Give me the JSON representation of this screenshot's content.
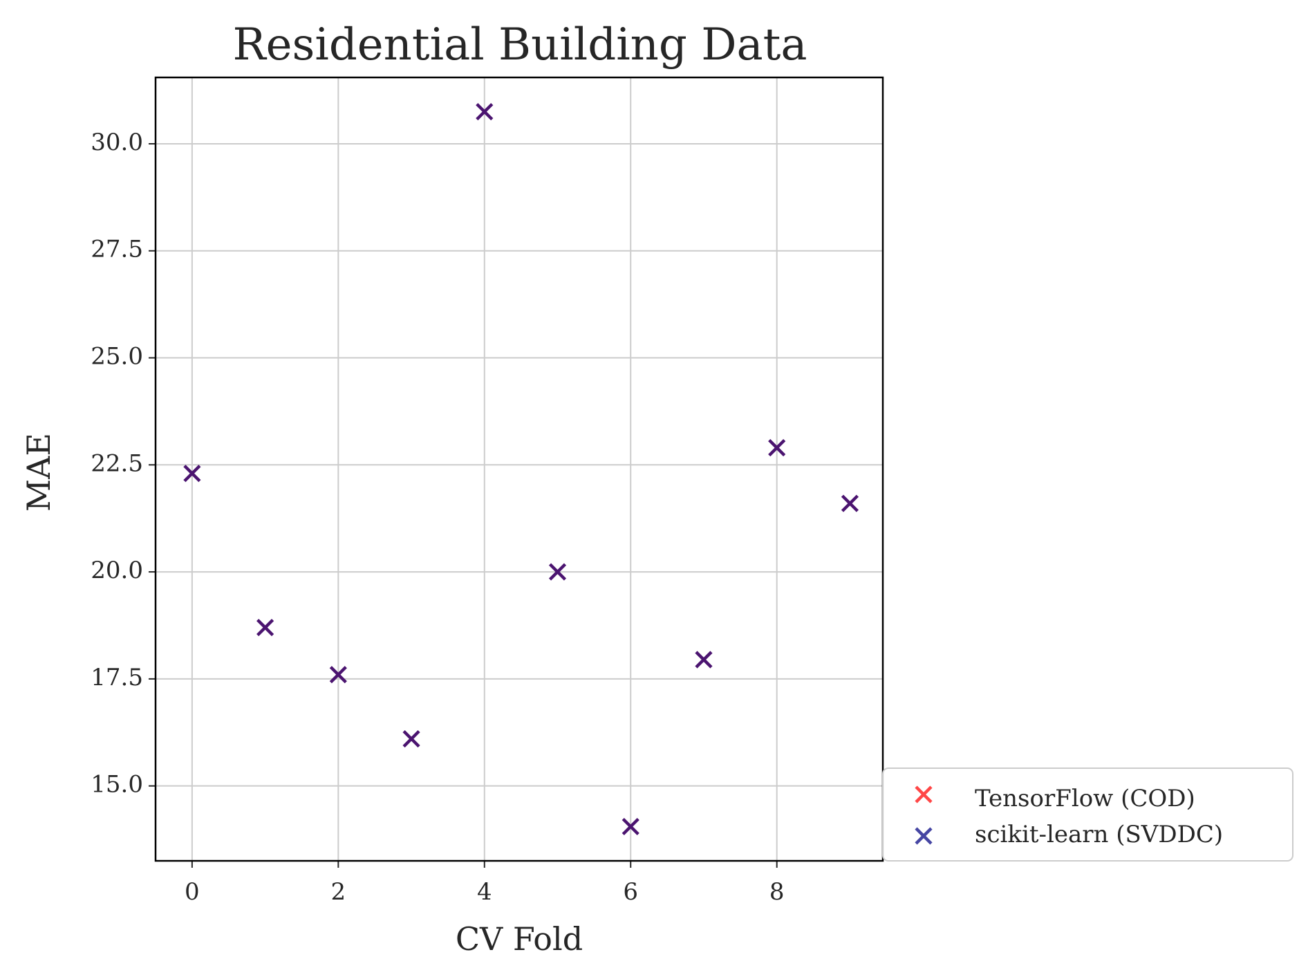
{
  "chart_data": {
    "type": "scatter",
    "title": "Residential Building Data",
    "xlabel": "CV Fold",
    "ylabel": "MAE",
    "xlim": [
      -0.5,
      9.45
    ],
    "ylim": [
      13.25,
      31.55
    ],
    "x_ticks": [
      0,
      2,
      4,
      6,
      8
    ],
    "y_ticks": [
      15.0,
      17.5,
      20.0,
      22.5,
      25.0,
      27.5,
      30.0
    ],
    "x_tick_labels": [
      "0",
      "2",
      "4",
      "6",
      "8"
    ],
    "y_tick_labels": [
      "15.0",
      "17.5",
      "20.0",
      "22.5",
      "25.0",
      "27.5",
      "30.0"
    ],
    "grid": true,
    "legend_position": "outside-bottom-right",
    "marker": "x",
    "series": [
      {
        "name": "TensorFlow (COD)",
        "color": "#ff3333",
        "x": [
          0,
          1,
          2,
          3,
          4,
          5,
          6,
          7,
          8,
          9
        ],
        "y": [
          22.3,
          18.7,
          17.6,
          16.1,
          30.75,
          20.0,
          14.05,
          17.95,
          22.9,
          21.6
        ]
      },
      {
        "name": "scikit-learn (SVDDC)",
        "color": "#33339a",
        "x": [
          0,
          1,
          2,
          3,
          4,
          5,
          6,
          7,
          8,
          9
        ],
        "y": [
          22.3,
          18.7,
          17.6,
          16.1,
          30.75,
          20.0,
          14.05,
          17.95,
          22.9,
          21.6
        ]
      }
    ],
    "overlap_marker_color": "#4b1470"
  }
}
